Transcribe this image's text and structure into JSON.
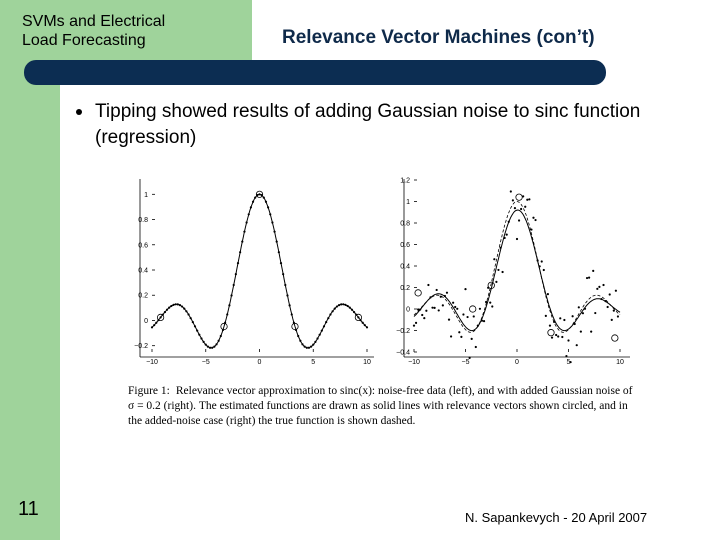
{
  "header": {
    "course_title_line1": "SVMs and Electrical",
    "course_title_line2": "Load Forecasting",
    "slide_title": "Relevance Vector Machines (con’t)"
  },
  "bullets": [
    "Tipping showed results of adding Gaussian noise to sinc function (regression)"
  ],
  "figure": {
    "left_plot": {
      "x_ticks": [
        "−10",
        "−5",
        "0",
        "5",
        "10"
      ],
      "y_ticks": [
        "1",
        "0.8",
        "0.6",
        "0.4",
        "0.2",
        "0",
        "−0.2"
      ]
    },
    "right_plot": {
      "x_ticks": [
        "−10",
        "−5",
        "0",
        "5",
        "10"
      ],
      "y_ticks": [
        "1.2",
        "1",
        "0.8",
        "0.6",
        "0.4",
        "0.2",
        "0",
        "−0.2",
        "−0.4"
      ]
    },
    "caption_label": "Figure 1:",
    "caption_text": "Relevance vector approximation to sinc(x): noise-free data (left), and with added Gaussian noise of σ = 0.2 (right). The estimated functions are drawn as solid lines with relevance vectors shown circled, and in the added-noise case (right) the true function is shown dashed."
  },
  "footer": {
    "page_number": "11",
    "author_date": "N. Sapankevych - 20 April 2007"
  },
  "colors": {
    "sidebar": "#9fd39b",
    "title_bar": "#0c2d52",
    "title_text": "#0f2a4a"
  }
}
